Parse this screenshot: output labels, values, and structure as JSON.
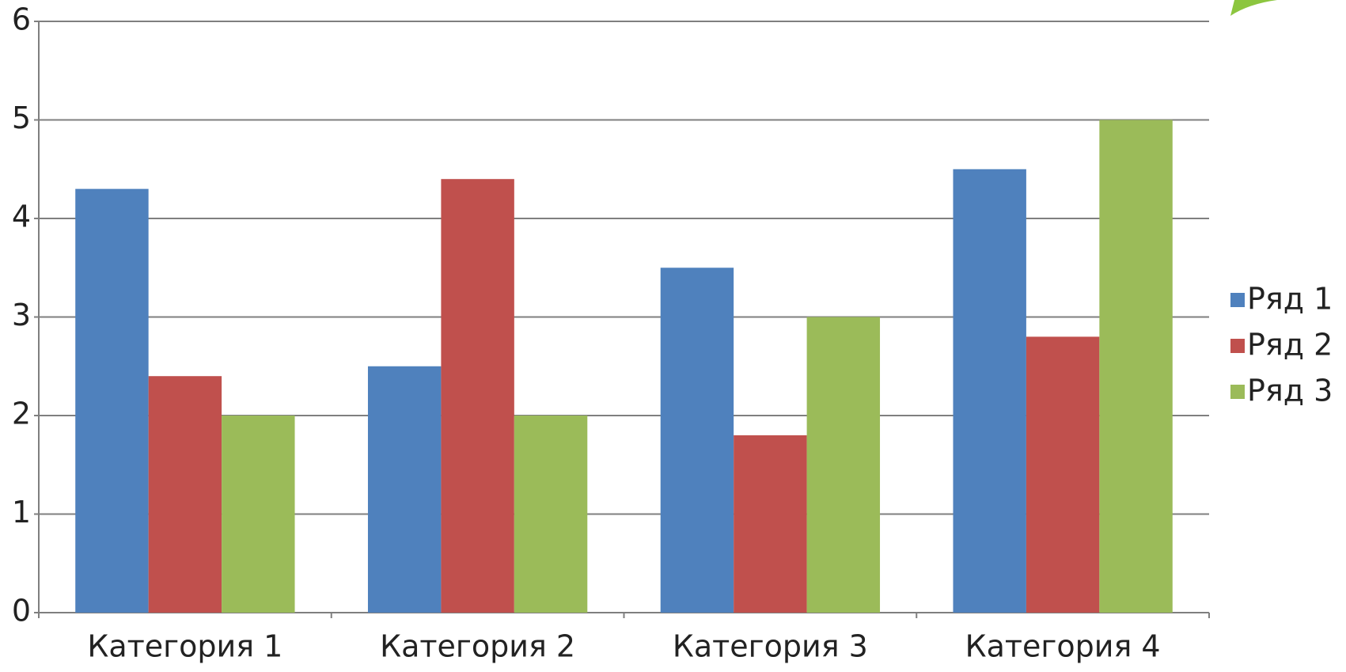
{
  "chart_data": {
    "type": "bar",
    "categories": [
      "Категория 1",
      "Категория 2",
      "Категория 3",
      "Категория 4"
    ],
    "series": [
      {
        "name": "Ряд 1",
        "color": "#4f81bd",
        "values": [
          4.3,
          2.5,
          3.5,
          4.5
        ]
      },
      {
        "name": "Ряд 2",
        "color": "#c0504d",
        "values": [
          2.4,
          4.4,
          1.8,
          2.8
        ]
      },
      {
        "name": "Ряд 3",
        "color": "#9bbb59",
        "values": [
          2,
          2,
          3,
          5
        ]
      }
    ],
    "ylim": [
      0,
      6
    ],
    "yticks": [
      0,
      1,
      2,
      3,
      4,
      5,
      6
    ],
    "grid": true,
    "legend": "right"
  }
}
